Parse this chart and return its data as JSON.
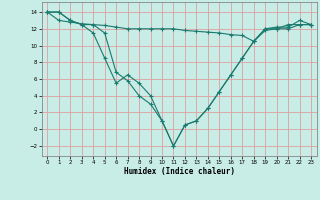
{
  "title": "",
  "xlabel": "Humidex (Indice chaleur)",
  "ylabel": "",
  "xlim": [
    -0.5,
    23.5
  ],
  "ylim": [
    -3.2,
    15.2
  ],
  "yticks": [
    -2,
    0,
    2,
    4,
    6,
    8,
    10,
    12,
    14
  ],
  "xticks": [
    0,
    1,
    2,
    3,
    4,
    5,
    6,
    7,
    8,
    9,
    10,
    11,
    12,
    13,
    14,
    15,
    16,
    17,
    18,
    19,
    20,
    21,
    22,
    23
  ],
  "bg_color": "#c8ece6",
  "line_color": "#1a7a6e",
  "grid_color": "#dda0a0",
  "series1_x": [
    0,
    1,
    2,
    3,
    4,
    5,
    6,
    7,
    8,
    9,
    10,
    11,
    12,
    13,
    14,
    15,
    16,
    17,
    18,
    19,
    20,
    21,
    22,
    23
  ],
  "series1_y": [
    14.0,
    14.0,
    13.0,
    12.5,
    11.5,
    8.5,
    5.5,
    6.5,
    5.5,
    4.0,
    1.0,
    -2.0,
    0.5,
    1.0,
    2.5,
    4.5,
    6.5,
    8.5,
    10.5,
    12.0,
    12.2,
    12.2,
    13.0,
    12.5
  ],
  "series2_x": [
    0,
    1,
    2,
    3,
    4,
    5,
    6,
    7,
    8,
    9,
    10,
    11,
    12,
    13,
    14,
    15,
    16,
    17,
    18,
    19,
    20,
    21,
    22,
    23
  ],
  "series2_y": [
    14.0,
    14.0,
    13.0,
    12.5,
    12.5,
    11.5,
    6.8,
    5.8,
    4.0,
    3.0,
    1.0,
    -2.0,
    0.5,
    1.0,
    2.5,
    4.5,
    6.5,
    8.5,
    10.5,
    12.0,
    12.0,
    12.0,
    12.5,
    12.5
  ],
  "series3_x": [
    0,
    1,
    2,
    3,
    4,
    5,
    6,
    7,
    8,
    9,
    10,
    11,
    12,
    13,
    14,
    15,
    16,
    17,
    18,
    19,
    20,
    21,
    22,
    23
  ],
  "series3_y": [
    14.0,
    13.0,
    12.8,
    12.6,
    12.5,
    12.4,
    12.2,
    12.0,
    12.0,
    12.0,
    12.0,
    12.0,
    11.8,
    11.7,
    11.6,
    11.5,
    11.3,
    11.2,
    10.5,
    11.8,
    12.0,
    12.5,
    12.5,
    12.5
  ]
}
